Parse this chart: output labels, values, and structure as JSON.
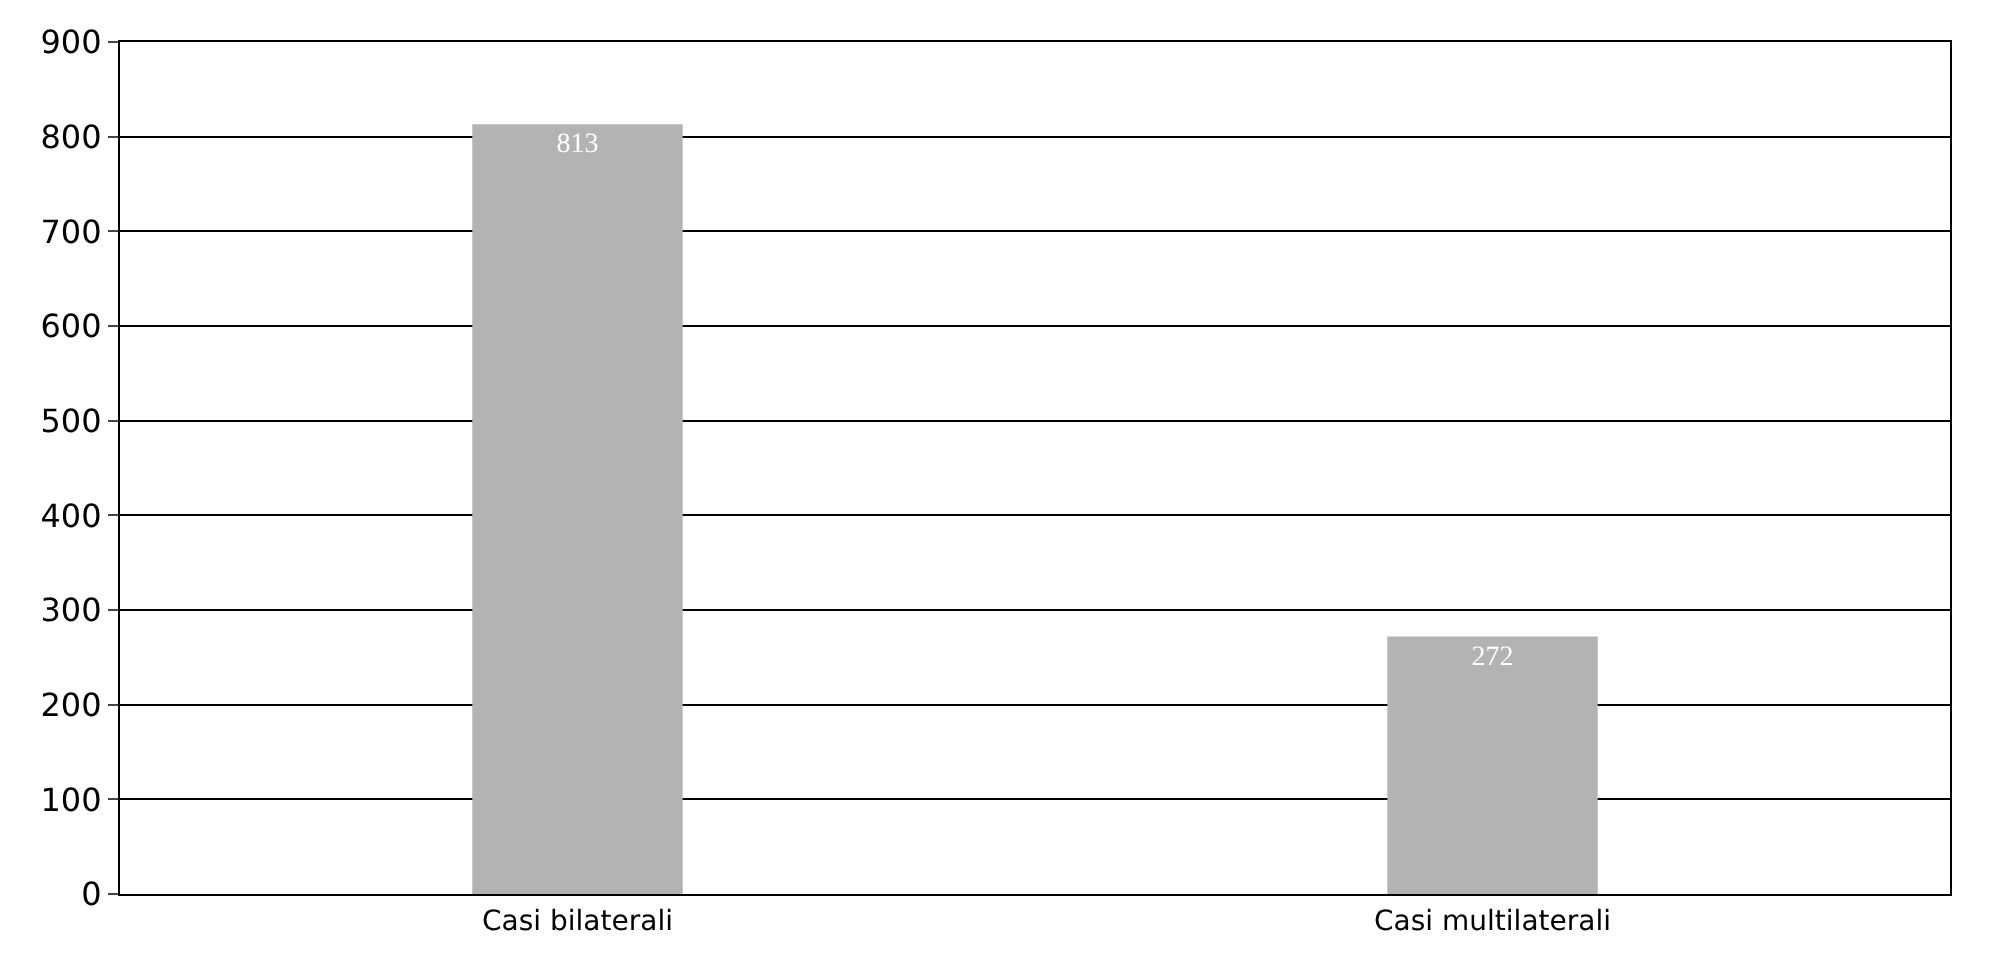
{
  "chart_data": {
    "type": "bar",
    "categories": [
      "Casi bilaterali",
      "Casi multilaterali"
    ],
    "values": [
      813,
      272
    ],
    "color": "#b3b3b3",
    "data_labels": true,
    "ylim": [
      0,
      900
    ],
    "yticks": [
      0,
      100,
      200,
      300,
      400,
      500,
      600,
      700,
      800,
      900
    ],
    "grid": "y"
  }
}
